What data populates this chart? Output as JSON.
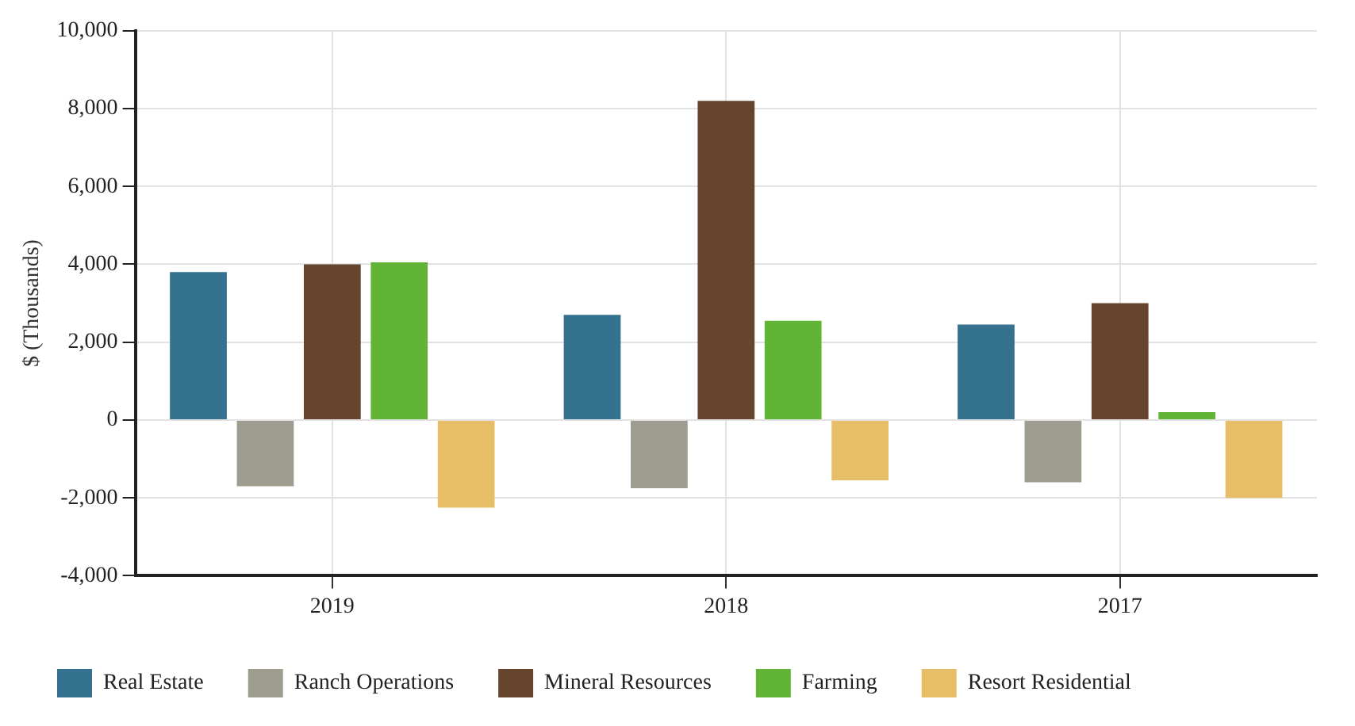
{
  "chart_data": {
    "type": "bar",
    "ylabel": "$ (Thousands)",
    "categories": [
      "2019",
      "2018",
      "2017"
    ],
    "series": [
      {
        "name": "Real Estate",
        "color": "#35728f",
        "values": [
          3800,
          2700,
          2450
        ]
      },
      {
        "name": "Ranch Operations",
        "color": "#9e9d90",
        "values": [
          -1700,
          -1750,
          -1600
        ]
      },
      {
        "name": "Mineral Resources",
        "color": "#66452e",
        "values": [
          4000,
          8200,
          3000
        ]
      },
      {
        "name": "Farming",
        "color": "#62b436",
        "values": [
          4050,
          2550,
          200
        ]
      },
      {
        "name": "Resort Residential",
        "color": "#e8bd67",
        "values": [
          -2250,
          -1550,
          -2000
        ]
      }
    ],
    "ylim": [
      -4000,
      10000
    ],
    "yticks": [
      {
        "value": -4000,
        "label": "-4,000"
      },
      {
        "value": -2000,
        "label": "-2,000"
      },
      0,
      {
        "value": 2000,
        "label": "2,000"
      },
      {
        "value": 4000,
        "label": "4,000"
      },
      {
        "value": 6000,
        "label": "6,000"
      },
      {
        "value": 8000,
        "label": "8,000"
      },
      {
        "value": 10000,
        "label": "10,000"
      }
    ],
    "grid": true,
    "legend": "bottom"
  }
}
